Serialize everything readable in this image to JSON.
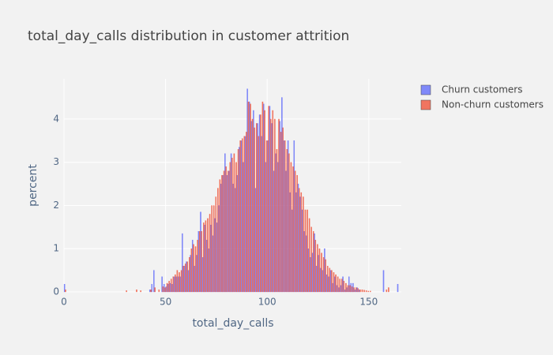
{
  "chart_data": {
    "type": "histogram",
    "title": "total_day_calls distribution in customer attrition",
    "x_label": "total_day_calls",
    "y_label": "percent",
    "bins": [
      0,
      1,
      2,
      3,
      4,
      5,
      6,
      7,
      8,
      9,
      10,
      11,
      12,
      13,
      14,
      15,
      16,
      17,
      18,
      19,
      20,
      21,
      22,
      23,
      24,
      25,
      26,
      27,
      28,
      29,
      30,
      31,
      32,
      33,
      34,
      35,
      36,
      37,
      38,
      39,
      40,
      41,
      42,
      43,
      44,
      45,
      46,
      47,
      48,
      49,
      50,
      51,
      52,
      53,
      54,
      55,
      56,
      57,
      58,
      59,
      60,
      61,
      62,
      63,
      64,
      65,
      66,
      67,
      68,
      69,
      70,
      71,
      72,
      73,
      74,
      75,
      76,
      77,
      78,
      79,
      80,
      81,
      82,
      83,
      84,
      85,
      86,
      87,
      88,
      89,
      90,
      91,
      92,
      93,
      94,
      95,
      96,
      97,
      98,
      99,
      100,
      101,
      102,
      103,
      104,
      105,
      106,
      107,
      108,
      109,
      110,
      111,
      112,
      113,
      114,
      115,
      116,
      117,
      118,
      119,
      120,
      121,
      122,
      123,
      124,
      125,
      126,
      127,
      128,
      129,
      130,
      131,
      132,
      133,
      134,
      135,
      136,
      137,
      138,
      139,
      140,
      141,
      142,
      143,
      144,
      145,
      146,
      147,
      148,
      149,
      150,
      151,
      152,
      153,
      154,
      155,
      156,
      157,
      158,
      159,
      160,
      161,
      162,
      163,
      164,
      165
    ],
    "series": [
      {
        "name": "Churn customers",
        "color": "#636efa",
        "values": [
          0.18,
          0,
          0,
          0,
          0,
          0,
          0,
          0,
          0,
          0,
          0,
          0,
          0,
          0,
          0,
          0,
          0,
          0,
          0,
          0,
          0,
          0,
          0,
          0,
          0,
          0,
          0,
          0,
          0,
          0,
          0,
          0,
          0,
          0,
          0,
          0,
          0,
          0,
          0,
          0,
          0,
          0,
          0.05,
          0.18,
          0.5,
          0,
          0,
          0,
          0.35,
          0.18,
          0.12,
          0.18,
          0.2,
          0.18,
          0.35,
          0.35,
          0.35,
          0.35,
          1.35,
          0.6,
          0.7,
          0.5,
          0.85,
          1.2,
          0.6,
          0.85,
          1.4,
          1.85,
          0.8,
          1.55,
          1.2,
          1.0,
          1.55,
          1.3,
          1.7,
          1.6,
          2.0,
          2.5,
          2.7,
          3.2,
          2.7,
          2.8,
          3.2,
          2.5,
          2.4,
          2.7,
          3.35,
          3.5,
          3.0,
          3.6,
          4.7,
          4.4,
          3.95,
          4.2,
          2.4,
          3.9,
          4.1,
          3.6,
          4.35,
          3.0,
          3.5,
          4.3,
          3.9,
          2.8,
          3.2,
          3.0,
          3.95,
          4.5,
          3.5,
          2.8,
          3.5,
          2.3,
          1.9,
          3.5,
          2.3,
          2.5,
          2.2,
          1.9,
          1.4,
          1.3,
          1.0,
          0.8,
          0.9,
          1.35,
          0.6,
          0.85,
          0.55,
          0.5,
          1.0,
          0.4,
          0.35,
          0.5,
          0.2,
          0.35,
          0.15,
          0.1,
          0.15,
          0.35,
          0.05,
          0.1,
          0.35,
          0.2,
          0.2,
          0.05,
          0.1,
          0.05,
          0,
          0,
          0,
          0,
          0,
          0,
          0,
          0,
          0,
          0,
          0,
          0.5,
          0,
          0,
          0,
          0,
          0,
          0,
          0.18
        ]
      },
      {
        "name": "Non-churn customers",
        "color": "#ef553b",
        "values": [
          0.05,
          0,
          0,
          0,
          0,
          0,
          0,
          0,
          0,
          0,
          0,
          0,
          0,
          0,
          0,
          0,
          0,
          0,
          0,
          0,
          0,
          0,
          0,
          0,
          0,
          0,
          0,
          0,
          0,
          0,
          0.03,
          0,
          0,
          0,
          0,
          0.05,
          0,
          0.03,
          0,
          0,
          0,
          0,
          0.05,
          0,
          0.1,
          0,
          0.05,
          0,
          0.12,
          0.1,
          0.2,
          0.25,
          0.3,
          0.35,
          0.4,
          0.5,
          0.45,
          0.5,
          0.6,
          0.65,
          0.7,
          0.8,
          1.0,
          1.1,
          1.05,
          1.2,
          1.4,
          1.4,
          1.6,
          1.65,
          1.7,
          1.8,
          2.0,
          2.0,
          2.2,
          2.4,
          2.6,
          2.7,
          2.8,
          2.9,
          2.8,
          3.0,
          3.1,
          3.2,
          3.0,
          3.3,
          3.5,
          3.55,
          3.6,
          3.7,
          4.4,
          4.35,
          4.0,
          3.8,
          3.9,
          3.6,
          4.1,
          4.4,
          4.2,
          3.5,
          4.3,
          4.0,
          4.2,
          4.0,
          3.3,
          4.0,
          3.7,
          3.8,
          3.5,
          3.3,
          3.2,
          3.0,
          2.9,
          2.8,
          2.7,
          2.4,
          2.3,
          2.2,
          1.9,
          1.9,
          1.7,
          1.5,
          1.4,
          1.2,
          1.1,
          1.0,
          0.9,
          0.8,
          0.75,
          0.6,
          0.55,
          0.5,
          0.45,
          0.4,
          0.35,
          0.3,
          0.3,
          0.25,
          0.2,
          0.15,
          0.15,
          0.12,
          0.1,
          0.1,
          0.08,
          0.05,
          0.05,
          0.04,
          0.03,
          0.02,
          0.02,
          0,
          0,
          0,
          0,
          0,
          0,
          0,
          0.05,
          0.1,
          0,
          0,
          0,
          0,
          0
        ]
      }
    ],
    "xlim": [
      0,
      166
    ],
    "ylim": [
      0,
      4.93
    ],
    "xticks": [
      0,
      50,
      100,
      150
    ],
    "yticks": [
      0,
      1,
      2,
      3,
      4
    ],
    "grid": true,
    "legend": "top-right"
  }
}
